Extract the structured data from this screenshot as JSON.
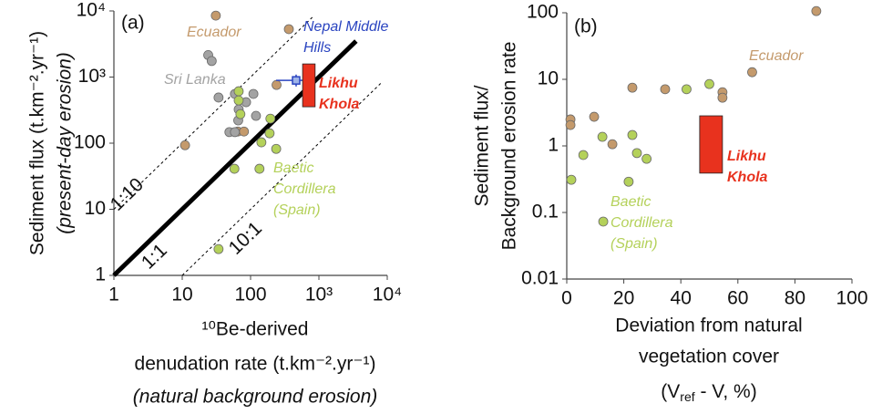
{
  "chart_data": [
    {
      "type": "scatter",
      "panel_label": "(a)",
      "xlabel_lines": [
        "¹⁰Be-derived",
        "denudation rate (t.km⁻².yr⁻¹)",
        "(natural background erosion)"
      ],
      "ylabel_lines": [
        "Sediment flux (t.km⁻².yr⁻¹)",
        "(present-day erosion)"
      ],
      "xscale": "log",
      "yscale": "log",
      "xlim": [
        1,
        10000
      ],
      "ylim": [
        1,
        10000
      ],
      "xticks": [
        1,
        10,
        100,
        {
          "value": 1000,
          "label": "10³"
        },
        {
          "value": 10000,
          "label": "10⁴"
        }
      ],
      "yticks": [
        1,
        10,
        100,
        {
          "value": 1000,
          "label": "10³"
        },
        {
          "value": 10000,
          "label": "10⁴"
        }
      ],
      "series": [
        {
          "label_lines": [
            "Ecuador"
          ],
          "color": "#c49a6c",
          "x": [
            31,
            363,
            11,
            65,
            80,
            240
          ],
          "y": [
            8500,
            5300,
            93,
            150,
            150,
            760
          ]
        },
        {
          "label_lines": [
            "Sri Lanka"
          ],
          "color": "#a3a3a3",
          "x": [
            24,
            27,
            34,
            59,
            67,
            66,
            86,
            110,
            120,
            49,
            59
          ],
          "y": [
            2150,
            1750,
            490,
            556,
            324,
            221,
            417,
            556,
            259,
            147,
            147
          ]
        },
        {
          "label_lines": [
            "Baetic",
            "Cordillera",
            "(Spain)"
          ],
          "color": "#b4d15a",
          "x": [
            67,
            67,
            195,
            190,
            237,
            144,
            135,
            58,
            34,
            71
          ],
          "y": [
            610,
            443,
            235,
            141,
            82,
            103,
            41,
            41,
            2.5,
            275
          ]
        }
      ],
      "ranges": [
        {
          "kind": "point-error",
          "label_lines": [
            "Nepal Middle",
            "Hills"
          ],
          "color": "#2a44c0",
          "x": 464,
          "y": 890,
          "xrange": [
            236,
            860
          ],
          "yrange": [
            720,
            1090
          ]
        },
        {
          "kind": "box",
          "label_lines": [
            "Likhu",
            "Khola"
          ],
          "color": "#e8321e",
          "xrange": [
            577,
            880
          ],
          "yrange": [
            355,
            1580
          ]
        }
      ],
      "ref_lines": [
        {
          "label": "1:10",
          "style": "dashed",
          "x": [
            1,
            800
          ],
          "y": [
            10,
            8000
          ]
        },
        {
          "label": "1:1",
          "style": "solid",
          "x": [
            1,
            3500
          ],
          "y": [
            1,
            3500
          ]
        },
        {
          "label": "10:1",
          "style": "dashed",
          "x": [
            10,
            8000
          ],
          "y": [
            1,
            800
          ]
        }
      ]
    },
    {
      "type": "scatter",
      "panel_label": "(b)",
      "xlabel_lines": [
        "Deviation from natural",
        "vegetation cover"
      ],
      "xlabel_formula": {
        "pre": "(V",
        "sub": "ref",
        "post": " - V, %)"
      },
      "ylabel_lines": [
        "Sediment flux/",
        "Background erosion rate"
      ],
      "xscale": "linear",
      "yscale": "log",
      "xlim": [
        0,
        100
      ],
      "ylim": [
        0.01,
        100
      ],
      "xticks": [
        0,
        20,
        40,
        60,
        80,
        100
      ],
      "yticks": [
        0.01,
        0.1,
        1,
        10,
        100
      ],
      "series": [
        {
          "label_lines": [
            "Ecuador"
          ],
          "color": "#c49a6c",
          "x": [
            1.3,
            1.3,
            9.6,
            16,
            23,
            34.5,
            54.6,
            54.6,
            65,
            87.5
          ],
          "y": [
            2.5,
            2.06,
            2.74,
            1.06,
            7.5,
            7.1,
            6.4,
            5.3,
            12.8,
            106
          ]
        },
        {
          "label_lines": [
            "Baetic",
            "Cordillera",
            "(Spain)"
          ],
          "color": "#b4d15a",
          "x": [
            1.6,
            5.8,
            12.5,
            12.8,
            23,
            24.6,
            28,
            21.7,
            42,
            50
          ],
          "y": [
            0.31,
            0.73,
            1.37,
            0.073,
            1.46,
            0.78,
            0.64,
            0.29,
            7.1,
            8.5
          ]
        }
      ],
      "ranges": [
        {
          "kind": "box",
          "label_lines": [
            "Likhu",
            "Khola"
          ],
          "color": "#e8321e",
          "xrange": [
            46.6,
            54.6
          ],
          "yrange": [
            0.39,
            2.83
          ]
        }
      ]
    }
  ]
}
